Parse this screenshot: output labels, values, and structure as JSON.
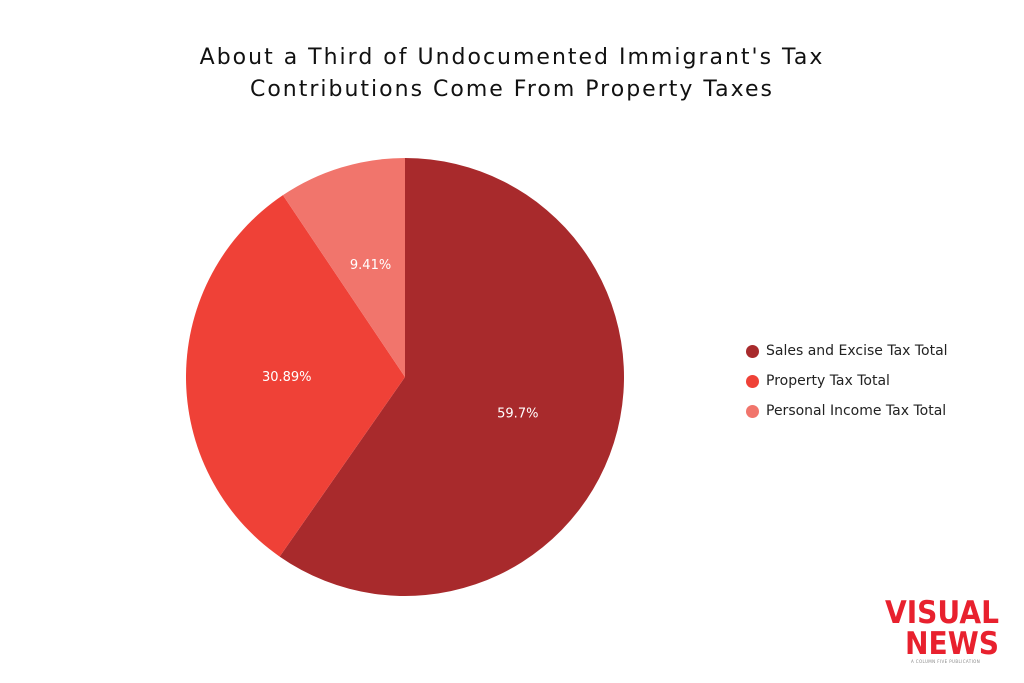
{
  "chart_data": {
    "type": "pie",
    "title": "About a Third of Undocumented Immigrant's Tax Contributions Come From Property Taxes",
    "title_lines": [
      "About a Third of Undocumented Immigrant's Tax",
      "Contributions Come From Property Taxes"
    ],
    "slices": [
      {
        "name": "Sales and Excise Tax Total",
        "value": 59.7,
        "label": "59.7%",
        "color": "#a82a2c"
      },
      {
        "name": "Property Tax Total",
        "value": 30.89,
        "label": "30.89%",
        "color": "#ef4137"
      },
      {
        "name": "Personal Income Tax Total",
        "value": 9.41,
        "label": "9.41%",
        "color": "#f1756c"
      }
    ],
    "legend_position": "right"
  },
  "brand": {
    "logo_text": "VISUAL NEWS",
    "tagline": "A COLUMN FIVE PUBLICATION",
    "color": "#e8212e"
  }
}
